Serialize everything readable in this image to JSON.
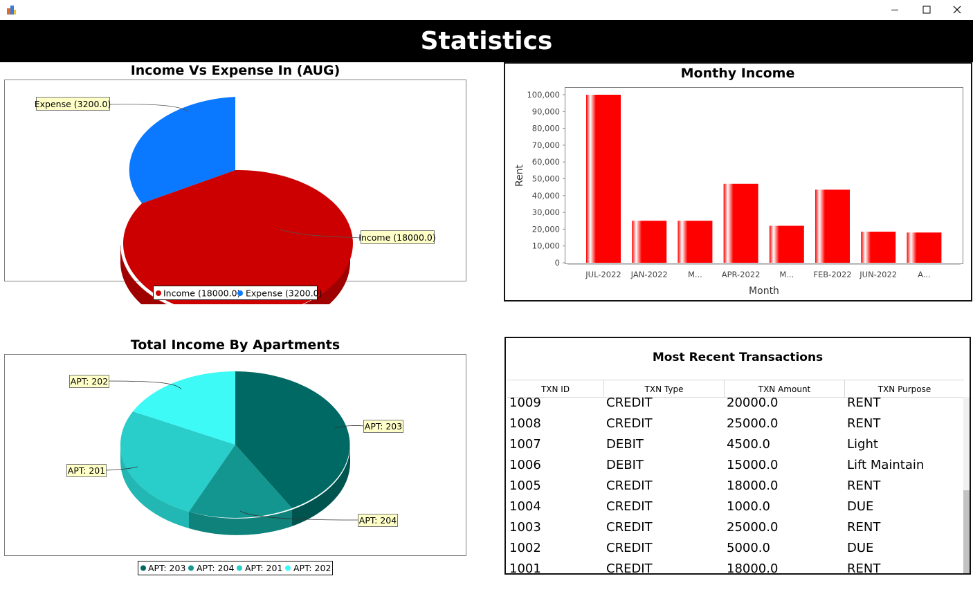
{
  "window": {
    "title": "",
    "controls": {
      "minimize": "minimize-icon",
      "maximize": "maximize-icon",
      "close": "close-icon"
    }
  },
  "header": {
    "title": "Statistics"
  },
  "charts": {
    "income_expense": {
      "title": "Income Vs Expense In (AUG)",
      "labels": [
        "Expense (3200.0)",
        "Income (18000.0)"
      ],
      "legend": [
        "Income (18000.0)",
        "Expense (3200.0)"
      ]
    },
    "monthly_income": {
      "title": "Monthy Income",
      "xlabel": "Month",
      "ylabel": "Rent",
      "yticks": [
        "0",
        "10,000",
        "20,000",
        "30,000",
        "40,000",
        "50,000",
        "60,000",
        "70,000",
        "80,000",
        "90,000",
        "100,000"
      ],
      "categories": [
        "JUL-2022",
        "JAN-2022",
        "M...",
        "APR-2022",
        "M...",
        "FEB-2022",
        "JUN-2022",
        "A..."
      ]
    },
    "apartments": {
      "title": "Total Income By Apartments",
      "labels": [
        "APT: 202",
        "APT: 203",
        "APT: 201",
        "APT: 204"
      ],
      "legend": [
        "APT: 203",
        "APT: 204",
        "APT: 201",
        "APT: 202"
      ]
    }
  },
  "chart_data": [
    {
      "type": "pie",
      "title": "Income Vs Expense In (AUG)",
      "categories": [
        "Income (18000.0)",
        "Expense (3200.0)"
      ],
      "values": [
        18000.0,
        3200.0
      ],
      "colors": [
        "#cc0000",
        "#0a78ff"
      ],
      "legend": "bottom"
    },
    {
      "type": "bar",
      "title": "Monthy Income",
      "xlabel": "Month",
      "ylabel": "Rent",
      "categories": [
        "JUL-2022",
        "JAN-2022",
        "M...",
        "APR-2022",
        "M...",
        "FEB-2022",
        "JUN-2022",
        "A..."
      ],
      "values": [
        100000,
        25000,
        25000,
        47000,
        22000,
        43500,
        18500,
        18000
      ],
      "ylim": [
        0,
        105000
      ],
      "color": "#ff0000",
      "grid": false
    },
    {
      "type": "pie",
      "title": "Total Income By Apartments",
      "categories": [
        "APT: 203",
        "APT: 204",
        "APT: 201",
        "APT: 202"
      ],
      "values": [
        40,
        15,
        28,
        17
      ],
      "colors": [
        "#006964",
        "#13968f",
        "#29cdc9",
        "#3dfaf6"
      ],
      "legend": "bottom"
    }
  ],
  "transactions": {
    "title": "Most Recent Transactions",
    "columns": [
      "TXN ID",
      "TXN Type",
      "TXN Amount",
      "TXN Purpose"
    ],
    "rows": [
      [
        "1009",
        "CREDIT",
        "20000.0",
        "RENT"
      ],
      [
        "1008",
        "CREDIT",
        "25000.0",
        "RENT"
      ],
      [
        "1007",
        "DEBIT",
        "4500.0",
        "Light"
      ],
      [
        "1006",
        "DEBIT",
        "15000.0",
        "Lift Maintain"
      ],
      [
        "1005",
        "CREDIT",
        "18000.0",
        "RENT"
      ],
      [
        "1004",
        "CREDIT",
        "1000.0",
        "DUE"
      ],
      [
        "1003",
        "CREDIT",
        "25000.0",
        "RENT"
      ],
      [
        "1002",
        "CREDIT",
        "5000.0",
        "DUE"
      ],
      [
        "1001",
        "CREDIT",
        "18000.0",
        "RENT"
      ]
    ]
  }
}
